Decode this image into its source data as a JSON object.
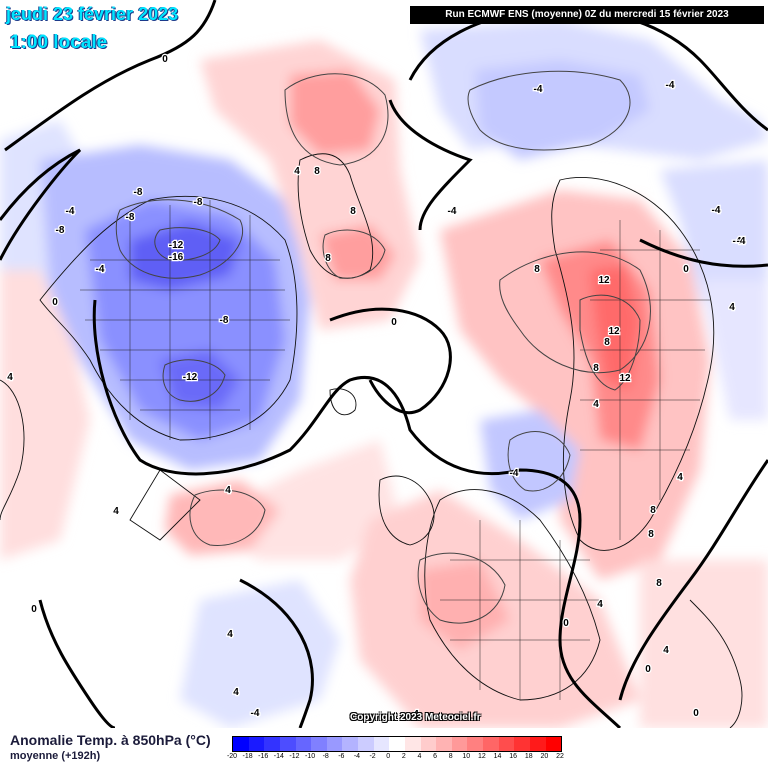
{
  "header": {
    "date": "jeudi 23 février 2023",
    "time": "1:00 locale",
    "run_info": "Run ECMWF ENS (moyenne) 0Z du mercredi 15 février 2023"
  },
  "footer": {
    "title": "Anomalie Temp. à 850hPa (°C)",
    "subtitle": "moyenne   (+192h)",
    "copyright": "Copyright 2023 Meteociel.fr"
  },
  "legend": {
    "ticks": [
      "-20",
      "-18",
      "-16",
      "-14",
      "-12",
      "-10",
      "-8",
      "-6",
      "-4",
      "-2",
      "0",
      "2",
      "4",
      "6",
      "8",
      "10",
      "12",
      "14",
      "16",
      "18",
      "20",
      "22"
    ],
    "colors": [
      "#0000ff",
      "#1a1aff",
      "#3333ff",
      "#4d4dff",
      "#6666ff",
      "#8080ff",
      "#9999ff",
      "#b3b3ff",
      "#ccccff",
      "#e6e6ff",
      "#ffffff",
      "#ffe6e6",
      "#ffcccc",
      "#ffb3b3",
      "#ff9999",
      "#ff8080",
      "#ff6666",
      "#ff4d4d",
      "#ff3333",
      "#ff1a1a",
      "#ff0000"
    ]
  },
  "map": {
    "isoline_labels": [
      {
        "text": "-8"
      },
      {
        "text": "-8"
      },
      {
        "text": "-8"
      },
      {
        "text": "-8"
      },
      {
        "text": "-4"
      },
      {
        "text": "-12"
      },
      {
        "text": "-16"
      },
      {
        "text": "-8"
      },
      {
        "text": "-12"
      },
      {
        "text": "-4"
      },
      {
        "text": "0"
      },
      {
        "text": "4"
      },
      {
        "text": "4"
      },
      {
        "text": "4"
      },
      {
        "text": "0"
      },
      {
        "text": "0"
      },
      {
        "text": "4"
      },
      {
        "text": "8"
      },
      {
        "text": "8"
      },
      {
        "text": "8"
      },
      {
        "text": "4"
      },
      {
        "text": "0"
      },
      {
        "text": "-4"
      },
      {
        "text": "-4"
      },
      {
        "text": "-4"
      },
      {
        "text": "-4"
      },
      {
        "text": "0"
      },
      {
        "text": "8"
      },
      {
        "text": "12"
      },
      {
        "text": "12"
      },
      {
        "text": "8"
      },
      {
        "text": "8"
      },
      {
        "text": "12"
      },
      {
        "text": "8"
      },
      {
        "text": "4"
      },
      {
        "text": "4"
      },
      {
        "text": "8"
      },
      {
        "text": "8"
      },
      {
        "text": "4"
      },
      {
        "text": "-4"
      },
      {
        "text": "4"
      },
      {
        "text": "0"
      },
      {
        "text": "0"
      },
      {
        "text": "-4"
      },
      {
        "text": "4"
      },
      {
        "text": "4"
      },
      {
        "text": "4"
      },
      {
        "text": "0"
      },
      {
        "text": "-4"
      },
      {
        "text": "-4"
      }
    ]
  }
}
